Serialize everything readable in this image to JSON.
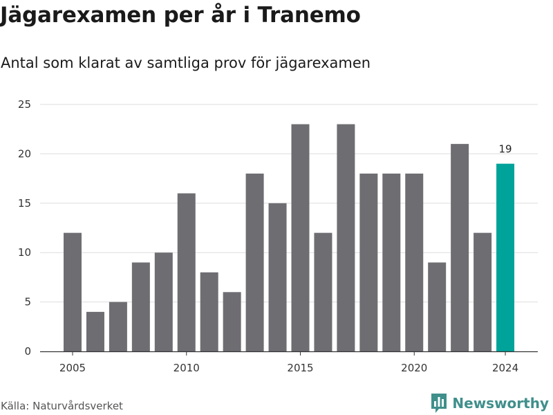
{
  "header": {
    "title": "Jägarexamen per år i Tranemo",
    "subtitle": "Antal som klarat av samtliga prov för jägarexamen"
  },
  "footer": {
    "source": "Källa: Naturvårdsverket",
    "brand": "Newsworthy",
    "brand_icon": "bar-chart-logo-icon"
  },
  "colors": {
    "bar": "#6e6d72",
    "highlight": "#00a39a",
    "grid": "#dddddd",
    "axis": "#333333",
    "brand": "#3f8f8b"
  },
  "chart_data": {
    "type": "bar",
    "title": "Jägarexamen per år i Tranemo",
    "subtitle": "Antal som klarat av samtliga prov för jägarexamen",
    "x": [
      2005,
      2006,
      2007,
      2008,
      2009,
      2010,
      2011,
      2012,
      2013,
      2014,
      2015,
      2016,
      2017,
      2018,
      2019,
      2020,
      2021,
      2022,
      2023,
      2024
    ],
    "values": [
      12,
      4,
      5,
      9,
      10,
      16,
      8,
      6,
      18,
      15,
      23,
      12,
      23,
      18,
      18,
      18,
      9,
      21,
      12,
      19
    ],
    "highlight_index": 19,
    "highlight_label": "19",
    "ylim": [
      0,
      25
    ],
    "yticks": [
      "0",
      "5",
      "10",
      "15",
      "20",
      "25"
    ],
    "xticks": [
      "2005",
      "2010",
      "2015",
      "2020",
      "2024"
    ],
    "xlabel": "",
    "ylabel": "",
    "grid": true,
    "legend": "none"
  }
}
